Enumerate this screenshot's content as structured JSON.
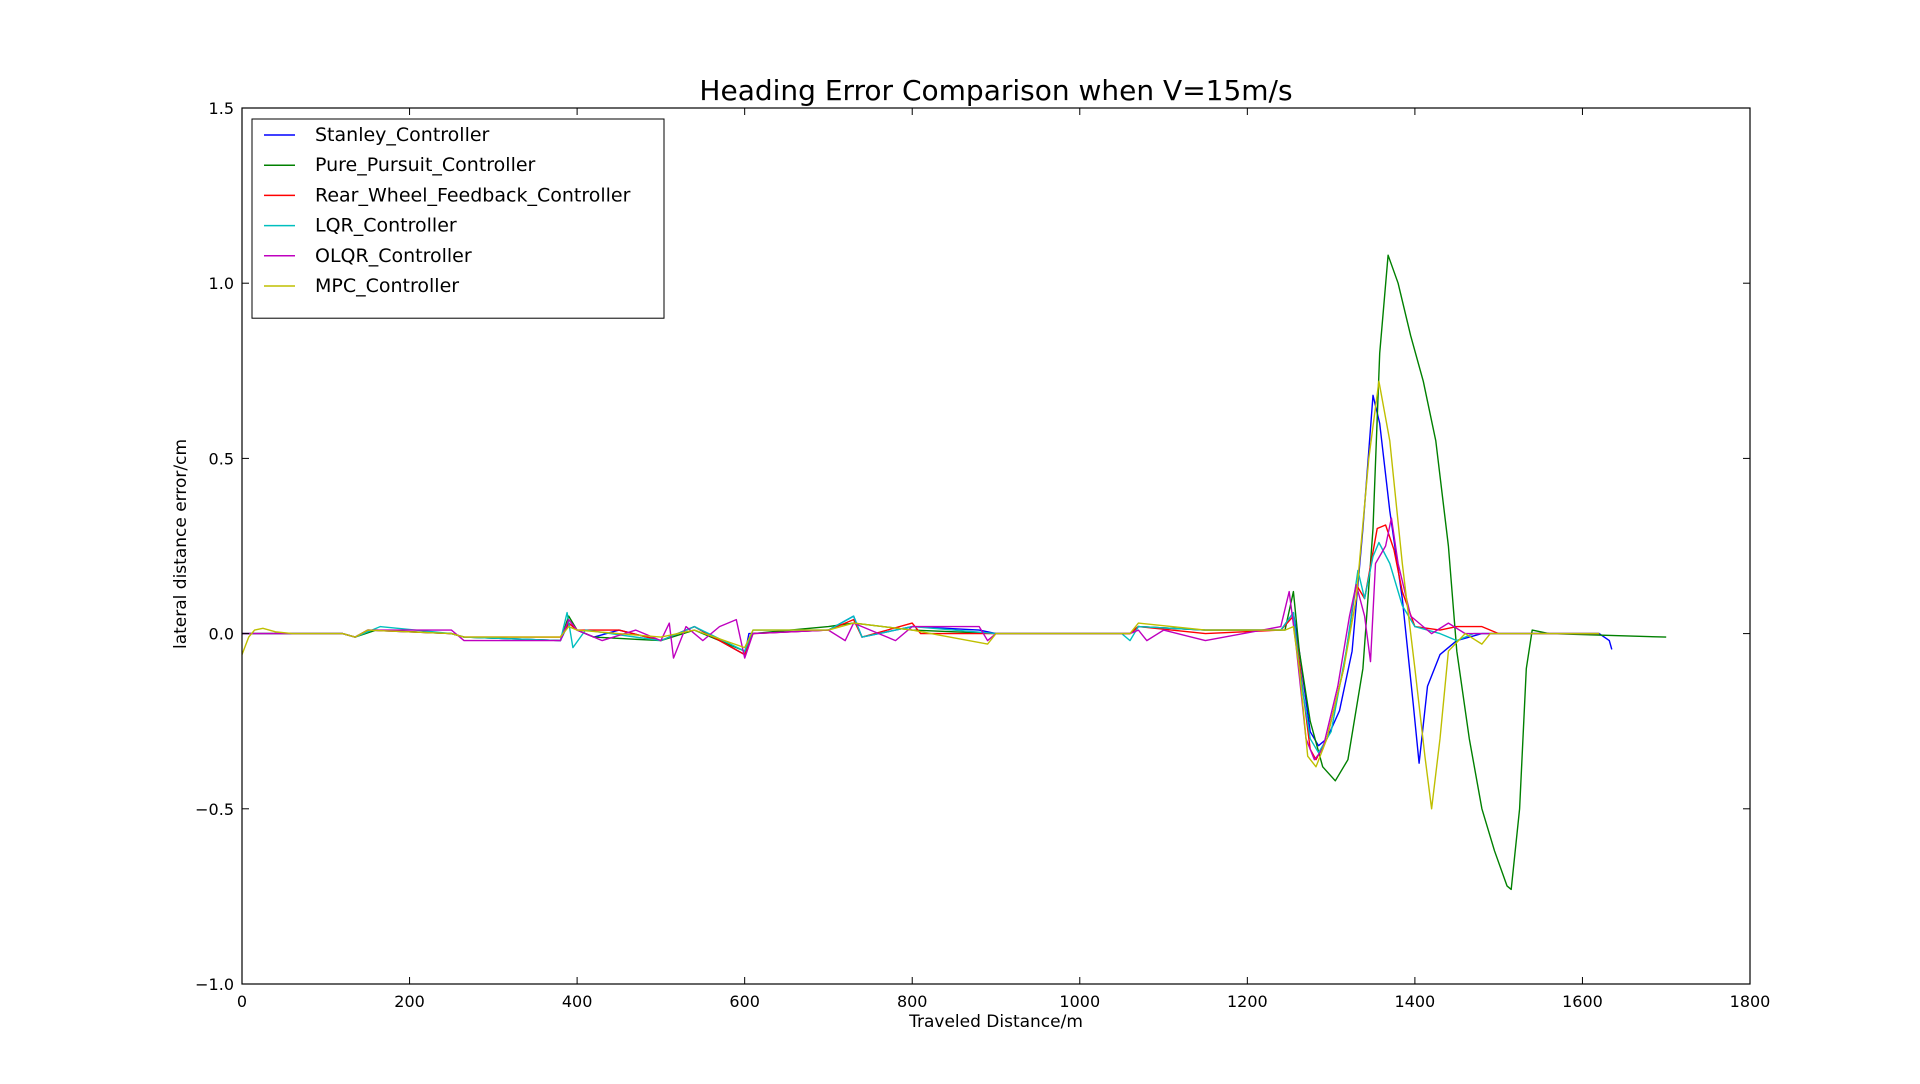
{
  "chart_data": {
    "type": "line",
    "title": "Heading Error Comparison when V=15m/s",
    "xlabel": "Traveled Distance/m",
    "ylabel": "lateral distance error/cm",
    "xlim": [
      0,
      1800
    ],
    "ylim": [
      -1.0,
      1.5
    ],
    "x_ticks": [
      0,
      200,
      400,
      600,
      800,
      1000,
      1200,
      1400,
      1600,
      1800
    ],
    "x_tick_labels": [
      "0",
      "200",
      "400",
      "600",
      "800",
      "1000",
      "1200",
      "1400",
      "1600",
      "1800"
    ],
    "y_ticks": [
      -1.0,
      -0.5,
      0.0,
      0.5,
      1.0,
      1.5
    ],
    "y_tick_labels": [
      "−1.0",
      "−0.5",
      "0.0",
      "0.5",
      "1.0",
      "1.5"
    ],
    "grid": false,
    "legend_position": "top-left",
    "series": [
      {
        "name": "Stanley_Controller",
        "color": "#0000ff",
        "points": [
          [
            0,
            0
          ],
          [
            120,
            0
          ],
          [
            135,
            -0.01
          ],
          [
            150,
            0.01
          ],
          [
            250,
            0
          ],
          [
            265,
            -0.01
          ],
          [
            380,
            -0.02
          ],
          [
            390,
            0.03
          ],
          [
            400,
            0.01
          ],
          [
            420,
            -0.01
          ],
          [
            450,
            0.01
          ],
          [
            500,
            -0.02
          ],
          [
            540,
            0.02
          ],
          [
            600,
            -0.06
          ],
          [
            605,
            0.0
          ],
          [
            700,
            0.01
          ],
          [
            730,
            0.05
          ],
          [
            740,
            -0.01
          ],
          [
            800,
            0.02
          ],
          [
            880,
            0.01
          ],
          [
            900,
            0
          ],
          [
            1060,
            0
          ],
          [
            1070,
            0.02
          ],
          [
            1150,
            0.01
          ],
          [
            1240,
            0.01
          ],
          [
            1255,
            0.06
          ],
          [
            1262,
            -0.05
          ],
          [
            1275,
            -0.28
          ],
          [
            1285,
            -0.32
          ],
          [
            1295,
            -0.3
          ],
          [
            1310,
            -0.22
          ],
          [
            1325,
            -0.05
          ],
          [
            1338,
            0.3
          ],
          [
            1350,
            0.68
          ],
          [
            1358,
            0.6
          ],
          [
            1370,
            0.35
          ],
          [
            1385,
            0.1
          ],
          [
            1398,
            -0.2
          ],
          [
            1405,
            -0.37
          ],
          [
            1415,
            -0.15
          ],
          [
            1430,
            -0.06
          ],
          [
            1450,
            -0.02
          ],
          [
            1480,
            0
          ],
          [
            1620,
            0
          ],
          [
            1632,
            -0.02
          ],
          [
            1635,
            -0.045
          ]
        ]
      },
      {
        "name": "Pure_Pursuit_Controller",
        "color": "#008000",
        "points": [
          [
            0,
            0
          ],
          [
            120,
            0
          ],
          [
            135,
            -0.01
          ],
          [
            160,
            0.01
          ],
          [
            250,
            0
          ],
          [
            265,
            -0.01
          ],
          [
            380,
            -0.02
          ],
          [
            390,
            0.05
          ],
          [
            400,
            0.01
          ],
          [
            420,
            -0.01
          ],
          [
            500,
            -0.02
          ],
          [
            540,
            0.01
          ],
          [
            600,
            -0.05
          ],
          [
            610,
            0.0
          ],
          [
            700,
            0.02
          ],
          [
            730,
            0.03
          ],
          [
            800,
            0.01
          ],
          [
            900,
            0
          ],
          [
            1060,
            0
          ],
          [
            1070,
            0.02
          ],
          [
            1150,
            0.01
          ],
          [
            1245,
            0.01
          ],
          [
            1255,
            0.12
          ],
          [
            1262,
            -0.05
          ],
          [
            1275,
            -0.25
          ],
          [
            1290,
            -0.38
          ],
          [
            1305,
            -0.42
          ],
          [
            1320,
            -0.36
          ],
          [
            1338,
            -0.1
          ],
          [
            1350,
            0.3
          ],
          [
            1358,
            0.8
          ],
          [
            1368,
            1.08
          ],
          [
            1380,
            1.0
          ],
          [
            1395,
            0.85
          ],
          [
            1410,
            0.72
          ],
          [
            1425,
            0.55
          ],
          [
            1440,
            0.25
          ],
          [
            1450,
            -0.05
          ],
          [
            1465,
            -0.3
          ],
          [
            1480,
            -0.5
          ],
          [
            1495,
            -0.62
          ],
          [
            1510,
            -0.72
          ],
          [
            1515,
            -0.73
          ],
          [
            1525,
            -0.5
          ],
          [
            1533,
            -0.1
          ],
          [
            1540,
            0.01
          ],
          [
            1560,
            0
          ],
          [
            1700,
            -0.01
          ]
        ]
      },
      {
        "name": "Rear_Wheel_Feedback_Controller",
        "color": "#ff0000",
        "points": [
          [
            0,
            0
          ],
          [
            120,
            0
          ],
          [
            135,
            -0.01
          ],
          [
            150,
            0.01
          ],
          [
            250,
            0
          ],
          [
            265,
            -0.01
          ],
          [
            380,
            -0.01
          ],
          [
            390,
            0.03
          ],
          [
            400,
            0.01
          ],
          [
            450,
            0.01
          ],
          [
            500,
            -0.02
          ],
          [
            540,
            0.02
          ],
          [
            600,
            -0.06
          ],
          [
            610,
            0.0
          ],
          [
            700,
            0.01
          ],
          [
            730,
            0.04
          ],
          [
            740,
            -0.01
          ],
          [
            800,
            0.03
          ],
          [
            810,
            0
          ],
          [
            900,
            0
          ],
          [
            1060,
            0
          ],
          [
            1070,
            0.02
          ],
          [
            1150,
            0
          ],
          [
            1240,
            0.01
          ],
          [
            1255,
            0.05
          ],
          [
            1262,
            -0.08
          ],
          [
            1275,
            -0.33
          ],
          [
            1282,
            -0.36
          ],
          [
            1295,
            -0.3
          ],
          [
            1315,
            -0.1
          ],
          [
            1330,
            0.14
          ],
          [
            1340,
            0.1
          ],
          [
            1355,
            0.3
          ],
          [
            1365,
            0.31
          ],
          [
            1375,
            0.24
          ],
          [
            1385,
            0.12
          ],
          [
            1400,
            0.02
          ],
          [
            1430,
            0.01
          ],
          [
            1450,
            0.02
          ],
          [
            1480,
            0.02
          ],
          [
            1500,
            0
          ],
          [
            1620,
            0
          ]
        ]
      },
      {
        "name": "LQR_Controller",
        "color": "#00bfbf",
        "points": [
          [
            0,
            0
          ],
          [
            120,
            0
          ],
          [
            135,
            -0.01
          ],
          [
            165,
            0.02
          ],
          [
            250,
            0
          ],
          [
            265,
            -0.01
          ],
          [
            380,
            -0.02
          ],
          [
            388,
            0.06
          ],
          [
            395,
            -0.04
          ],
          [
            410,
            0.01
          ],
          [
            500,
            -0.02
          ],
          [
            540,
            0.02
          ],
          [
            600,
            -0.05
          ],
          [
            610,
            0.01
          ],
          [
            700,
            0.01
          ],
          [
            730,
            0.05
          ],
          [
            740,
            -0.01
          ],
          [
            800,
            0.02
          ],
          [
            900,
            0
          ],
          [
            1050,
            0
          ],
          [
            1060,
            -0.02
          ],
          [
            1070,
            0.02
          ],
          [
            1150,
            0.01
          ],
          [
            1240,
            0.01
          ],
          [
            1255,
            0.06
          ],
          [
            1262,
            -0.1
          ],
          [
            1275,
            -0.3
          ],
          [
            1285,
            -0.34
          ],
          [
            1300,
            -0.28
          ],
          [
            1318,
            -0.05
          ],
          [
            1332,
            0.18
          ],
          [
            1340,
            0.1
          ],
          [
            1350,
            0.22
          ],
          [
            1357,
            0.26
          ],
          [
            1370,
            0.2
          ],
          [
            1385,
            0.08
          ],
          [
            1400,
            0.02
          ],
          [
            1430,
            0
          ],
          [
            1450,
            -0.02
          ],
          [
            1470,
            0
          ],
          [
            1620,
            0
          ]
        ]
      },
      {
        "name": "OLQR_Controller",
        "color": "#bf00bf",
        "points": [
          [
            0,
            0
          ],
          [
            120,
            0
          ],
          [
            135,
            -0.01
          ],
          [
            150,
            0.01
          ],
          [
            250,
            0.01
          ],
          [
            265,
            -0.02
          ],
          [
            380,
            -0.02
          ],
          [
            390,
            0.04
          ],
          [
            400,
            0.01
          ],
          [
            430,
            -0.02
          ],
          [
            470,
            0.01
          ],
          [
            500,
            -0.02
          ],
          [
            510,
            0.03
          ],
          [
            515,
            -0.07
          ],
          [
            530,
            0.02
          ],
          [
            550,
            -0.02
          ],
          [
            570,
            0.02
          ],
          [
            590,
            0.04
          ],
          [
            600,
            -0.07
          ],
          [
            610,
            0.0
          ],
          [
            700,
            0.01
          ],
          [
            720,
            -0.02
          ],
          [
            730,
            0.03
          ],
          [
            780,
            -0.02
          ],
          [
            800,
            0.02
          ],
          [
            880,
            0.02
          ],
          [
            890,
            -0.02
          ],
          [
            900,
            0
          ],
          [
            1060,
            0
          ],
          [
            1070,
            0.01
          ],
          [
            1080,
            -0.02
          ],
          [
            1100,
            0.01
          ],
          [
            1150,
            -0.02
          ],
          [
            1240,
            0.02
          ],
          [
            1250,
            0.12
          ],
          [
            1258,
            -0.03
          ],
          [
            1270,
            -0.3
          ],
          [
            1280,
            -0.36
          ],
          [
            1290,
            -0.33
          ],
          [
            1308,
            -0.15
          ],
          [
            1322,
            0.05
          ],
          [
            1330,
            0.14
          ],
          [
            1340,
            0.05
          ],
          [
            1347,
            -0.08
          ],
          [
            1353,
            0.2
          ],
          [
            1365,
            0.25
          ],
          [
            1372,
            0.33
          ],
          [
            1380,
            0.2
          ],
          [
            1395,
            0.05
          ],
          [
            1420,
            0
          ],
          [
            1440,
            0.03
          ],
          [
            1460,
            0
          ],
          [
            1620,
            0
          ]
        ]
      },
      {
        "name": "MPC_Controller",
        "color": "#bfbf00",
        "points": [
          [
            0,
            -0.06
          ],
          [
            8,
            -0.01
          ],
          [
            15,
            0.01
          ],
          [
            25,
            0.015
          ],
          [
            40,
            0.005
          ],
          [
            60,
            0
          ],
          [
            120,
            0
          ],
          [
            135,
            -0.01
          ],
          [
            150,
            0.01
          ],
          [
            250,
            0
          ],
          [
            265,
            -0.01
          ],
          [
            380,
            -0.01
          ],
          [
            390,
            0.02
          ],
          [
            400,
            0.01
          ],
          [
            500,
            -0.01
          ],
          [
            540,
            0.01
          ],
          [
            600,
            -0.04
          ],
          [
            610,
            0.01
          ],
          [
            700,
            0.01
          ],
          [
            730,
            0.03
          ],
          [
            800,
            0.01
          ],
          [
            890,
            -0.03
          ],
          [
            900,
            0
          ],
          [
            1060,
            0
          ],
          [
            1070,
            0.03
          ],
          [
            1150,
            0.01
          ],
          [
            1245,
            0.01
          ],
          [
            1255,
            0.02
          ],
          [
            1262,
            -0.1
          ],
          [
            1272,
            -0.35
          ],
          [
            1282,
            -0.38
          ],
          [
            1295,
            -0.3
          ],
          [
            1315,
            -0.1
          ],
          [
            1330,
            0.1
          ],
          [
            1345,
            0.5
          ],
          [
            1357,
            0.72
          ],
          [
            1370,
            0.55
          ],
          [
            1385,
            0.2
          ],
          [
            1400,
            -0.1
          ],
          [
            1412,
            -0.35
          ],
          [
            1420,
            -0.5
          ],
          [
            1430,
            -0.3
          ],
          [
            1440,
            -0.05
          ],
          [
            1460,
            0
          ],
          [
            1480,
            -0.03
          ],
          [
            1490,
            0
          ],
          [
            1620,
            0
          ]
        ]
      }
    ]
  }
}
